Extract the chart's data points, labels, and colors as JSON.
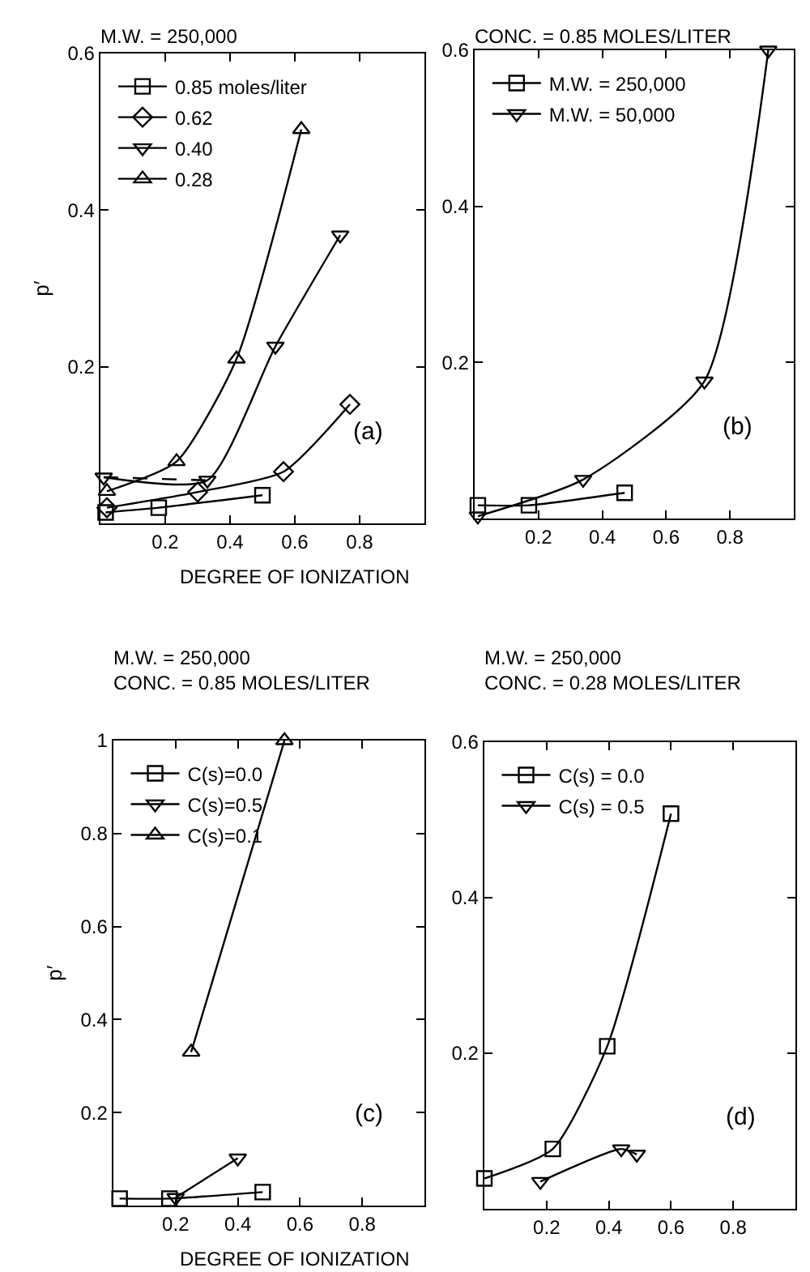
{
  "chart_data": [
    {
      "type": "line",
      "title": "M.W. = 250,000",
      "ylabel": "p′",
      "xlabel": "DEGREE OF IONIZATION",
      "annotations": [
        "(a)"
      ],
      "xlim": [
        0,
        1
      ],
      "ylim": [
        0,
        0.6
      ],
      "xticks": [
        0.2,
        0.4,
        0.6,
        0.8
      ],
      "yticks": [
        0.2,
        0.4,
        0.6
      ],
      "grid": false,
      "legend": "top left",
      "line_style": "solid",
      "series": [
        {
          "name": "0.85 moles/liter",
          "color": "#000000",
          "marker": "square",
          "x": [
            0.016,
            0.18,
            0.5
          ],
          "values": [
            0.014,
            0.02,
            0.036
          ]
        },
        {
          "name": "0.62",
          "color": "#000000",
          "marker": "diamond",
          "x": [
            0.02,
            0.3,
            0.565,
            0.77
          ],
          "values": [
            0.02,
            0.04,
            0.066,
            0.152
          ]
        },
        {
          "name": "0.40",
          "color": "#000000",
          "marker": "triangle-down",
          "x": [
            0.01,
            0.33,
            0.54,
            0.74
          ],
          "values": [
            0.059,
            0.055,
            0.226,
            0.368
          ]
        },
        {
          "color": "#000000",
          "marker": "none",
          "line_style": "dashed",
          "x": [
            0.01,
            0.33
          ],
          "values": [
            0.059,
            0.055
          ]
        },
        {
          "name": "0.28",
          "color": "#000000",
          "marker": "triangle",
          "x": [
            0.02,
            0.235,
            0.42,
            0.62
          ],
          "values": [
            0.041,
            0.079,
            0.21,
            0.503
          ]
        }
      ]
    },
    {
      "type": "line",
      "title": "CONC. = 0.85 MOLES/LITER",
      "annotations": [
        "(b)"
      ],
      "xlim": [
        0,
        1
      ],
      "ylim": [
        0,
        0.6
      ],
      "xticks": [
        0.2,
        0.4,
        0.6,
        0.8
      ],
      "yticks": [
        0.2,
        0.4,
        0.6
      ],
      "grid": false,
      "legend": "top left",
      "line_style": "solid",
      "series": [
        {
          "name": "M.W. = 250,000",
          "color": "#000000",
          "marker": "square",
          "x": [
            0.01,
            0.17,
            0.47
          ],
          "values": [
            0.017,
            0.017,
            0.033
          ]
        },
        {
          "name": "M.W. = 50,000",
          "color": "#000000",
          "marker": "triangle-down",
          "x": [
            0.01,
            0.34,
            0.72,
            0.92
          ],
          "values": [
            0.003,
            0.05,
            0.176,
            0.6
          ]
        }
      ]
    },
    {
      "type": "line",
      "title": "M.W. = 250,000",
      "subtitle": "CONC. = 0.85 MOLES/LITER",
      "ylabel": "p′",
      "xlabel": "DEGREE OF IONIZATION",
      "annotations": [
        "(c)"
      ],
      "xlim": [
        0,
        1
      ],
      "ylim": [
        0,
        1
      ],
      "xticks": [
        0.2,
        0.4,
        0.6,
        0.8
      ],
      "yticks": [
        0.2,
        0.4,
        0.6,
        0.8,
        1.0
      ],
      "grid": false,
      "legend": "top left",
      "line_style": "solid",
      "series": [
        {
          "name": "C(s)=0.0",
          "color": "#000000",
          "marker": "square",
          "x": [
            0.02,
            0.18,
            0.48
          ],
          "values": [
            0.015,
            0.015,
            0.029
          ]
        },
        {
          "name": "C(s)=0.5",
          "color": "#000000",
          "marker": "triangle-down",
          "x": [
            0.2,
            0.4
          ],
          "values": [
            0.017,
            0.102
          ]
        },
        {
          "name": "C(s)=0.1",
          "color": "#000000",
          "marker": "triangle",
          "x": [
            0.25,
            0.55
          ],
          "values": [
            0.33,
            1.0
          ]
        }
      ]
    },
    {
      "type": "line",
      "title": "M.W. = 250,000",
      "subtitle": "CONC. = 0.28 MOLES/LITER",
      "annotations": [
        "(d)"
      ],
      "xlim": [
        0,
        1
      ],
      "ylim": [
        0,
        0.6
      ],
      "xticks": [
        0.2,
        0.4,
        0.6,
        0.8
      ],
      "yticks": [
        0.2,
        0.4,
        0.6
      ],
      "grid": false,
      "legend": "top left",
      "line_style": "solid",
      "series": [
        {
          "name": "C(s) = 0.0",
          "color": "#000000",
          "marker": "square",
          "x": [
            0,
            0.22,
            0.395,
            0.6
          ],
          "values": [
            0.039,
            0.077,
            0.209,
            0.508
          ]
        },
        {
          "name": "C(s) = 0.5",
          "color": "#000000",
          "marker": "triangle-down",
          "x": [
            0.18,
            0.44,
            0.49
          ],
          "values": [
            0.035,
            0.077,
            0.07
          ]
        }
      ]
    }
  ]
}
